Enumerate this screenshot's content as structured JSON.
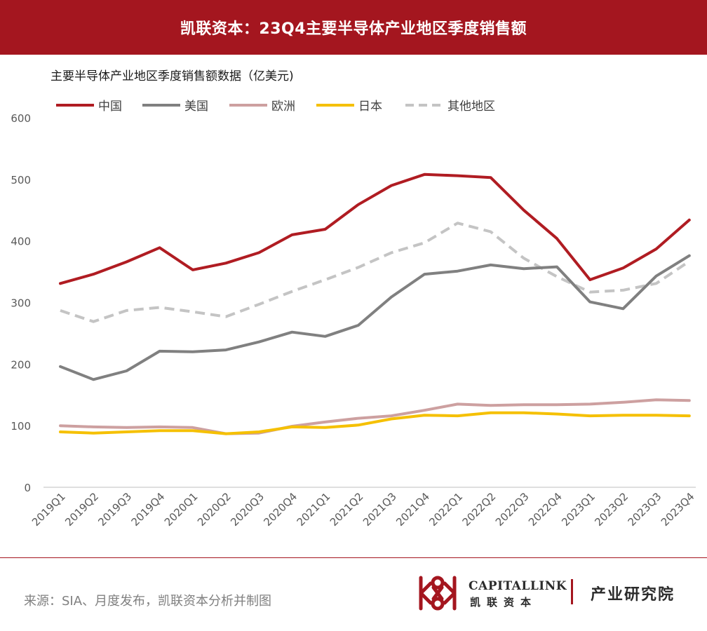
{
  "header": {
    "title": "凯联资本：23Q4主要半导体产业地区季度销售额"
  },
  "chart_data": {
    "type": "line",
    "subtitle": "主要半导体产业地区季度销售额数据（亿美元)",
    "categories": [
      "2019Q1",
      "2019Q2",
      "2019Q3",
      "2019Q4",
      "2020Q1",
      "2020Q2",
      "2020Q3",
      "2020Q4",
      "2021Q1",
      "2021Q2",
      "2021Q3",
      "2021Q4",
      "2022Q1",
      "2022Q2",
      "2022Q3",
      "2022Q4",
      "2023Q1",
      "2023Q2",
      "2023Q3",
      "2023Q4"
    ],
    "ylim": [
      0,
      600
    ],
    "yticks": [
      0,
      100,
      200,
      300,
      400,
      500,
      600
    ],
    "grid": false,
    "legend_position": "top-left",
    "series": [
      {
        "name": "中国",
        "color": "#b01c22",
        "dashed": false,
        "values": [
          331,
          346,
          366,
          389,
          353,
          364,
          381,
          410,
          419,
          459,
          490,
          508,
          506,
          503,
          450,
          404,
          337,
          356,
          387,
          434
        ]
      },
      {
        "name": "美国",
        "color": "#808080",
        "dashed": false,
        "values": [
          196,
          175,
          189,
          221,
          220,
          223,
          236,
          252,
          245,
          263,
          309,
          346,
          351,
          361,
          355,
          358,
          301,
          290,
          343,
          376
        ]
      },
      {
        "name": "欧洲",
        "color": "#cda0a0",
        "dashed": false,
        "values": [
          100,
          98,
          97,
          98,
          97,
          87,
          88,
          99,
          106,
          112,
          116,
          125,
          135,
          133,
          134,
          134,
          135,
          138,
          142,
          141
        ]
      },
      {
        "name": "日本",
        "color": "#f5c000",
        "dashed": false,
        "values": [
          90,
          88,
          90,
          92,
          92,
          87,
          90,
          98,
          97,
          101,
          111,
          117,
          116,
          121,
          121,
          119,
          116,
          117,
          117,
          116
        ]
      },
      {
        "name": "其他地区",
        "color": "#c4c4c4",
        "dashed": true,
        "values": [
          287,
          269,
          287,
          292,
          285,
          277,
          297,
          318,
          337,
          357,
          381,
          397,
          429,
          415,
          372,
          342,
          317,
          320,
          331,
          367
        ]
      }
    ]
  },
  "footer": {
    "source": "来源：SIA、月度发布，凯联资本分析并制图",
    "logo_en": "CAPITALLINK",
    "logo_cn": "凯联资本",
    "dept": "产业研究院",
    "brand_color": "#a4161f"
  }
}
